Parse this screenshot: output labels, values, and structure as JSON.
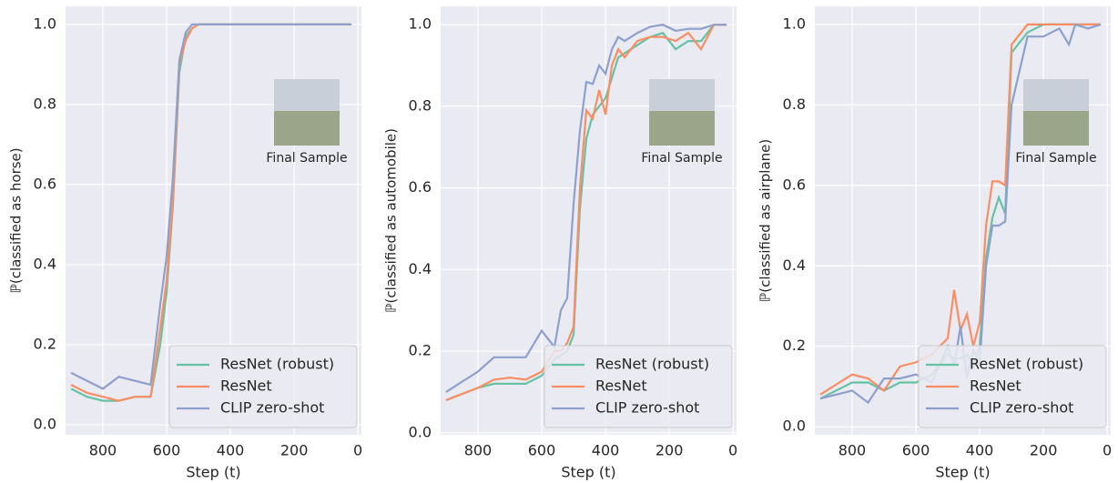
{
  "chart_data": [
    {
      "type": "line",
      "xlabel": "Step (t)",
      "ylabel": "ℙ(classified as horse)",
      "annotation": "Final Sample",
      "x": [
        900,
        850,
        800,
        750,
        700,
        650,
        620,
        600,
        580,
        560,
        540,
        520,
        500,
        480,
        450,
        400,
        300,
        200,
        100,
        20
      ],
      "series": [
        {
          "name": "ResNet (robust)",
          "color": "#66c2a5",
          "values": [
            0.09,
            0.07,
            0.06,
            0.06,
            0.07,
            0.07,
            0.2,
            0.33,
            0.55,
            0.88,
            0.97,
            0.99,
            1,
            1,
            1,
            1,
            1,
            1,
            1,
            1
          ]
        },
        {
          "name": "ResNet",
          "color": "#fc8d62",
          "values": [
            0.1,
            0.08,
            0.07,
            0.06,
            0.07,
            0.07,
            0.24,
            0.36,
            0.56,
            0.9,
            0.96,
            0.99,
            1,
            1,
            1,
            1,
            1,
            1,
            1,
            1
          ]
        },
        {
          "name": "CLIP zero-shot",
          "color": "#8da0cb",
          "values": [
            0.13,
            0.11,
            0.09,
            0.12,
            0.11,
            0.1,
            0.3,
            0.42,
            0.62,
            0.91,
            0.98,
            1,
            1,
            1,
            1,
            1,
            1,
            1,
            1,
            1
          ]
        }
      ],
      "xlim": [
        917,
        -11
      ],
      "ylim": [
        -0.025,
        1.045
      ],
      "xticks": [
        800,
        600,
        400,
        200,
        0
      ],
      "yticks": [
        {
          "value": 0,
          "label": "0.0"
        },
        {
          "value": 0.2,
          "label": "0.2"
        },
        {
          "value": 0.4,
          "label": "0.4"
        },
        {
          "value": 0.6,
          "label": "0.6"
        },
        {
          "value": 0.8,
          "label": "0.8"
        },
        {
          "value": 1,
          "label": "1.0"
        }
      ],
      "grid": true,
      "legend": "lower right"
    },
    {
      "type": "line",
      "xlabel": "Step (t)",
      "ylabel": "ℙ(classified as automobile)",
      "annotation": "Final Sample",
      "x": [
        900,
        800,
        750,
        700,
        650,
        600,
        560,
        540,
        520,
        500,
        480,
        460,
        440,
        420,
        400,
        380,
        360,
        340,
        300,
        260,
        220,
        180,
        140,
        100,
        60,
        20
      ],
      "series": [
        {
          "name": "ResNet (robust)",
          "color": "#66c2a5",
          "values": [
            0.08,
            0.11,
            0.12,
            0.12,
            0.12,
            0.14,
            0.18,
            0.19,
            0.2,
            0.24,
            0.55,
            0.72,
            0.78,
            0.8,
            0.82,
            0.87,
            0.92,
            0.93,
            0.95,
            0.97,
            0.98,
            0.94,
            0.96,
            0.96,
            1,
            1
          ]
        },
        {
          "name": "ResNet",
          "color": "#fc8d62",
          "values": [
            0.08,
            0.11,
            0.13,
            0.135,
            0.13,
            0.15,
            0.2,
            0.2,
            0.22,
            0.26,
            0.6,
            0.79,
            0.77,
            0.84,
            0.78,
            0.9,
            0.94,
            0.92,
            0.96,
            0.97,
            0.97,
            0.96,
            0.98,
            0.94,
            1,
            1
          ]
        },
        {
          "name": "CLIP zero-shot",
          "color": "#8da0cb",
          "values": [
            0.1,
            0.15,
            0.185,
            0.185,
            0.185,
            0.25,
            0.21,
            0.3,
            0.33,
            0.56,
            0.74,
            0.86,
            0.855,
            0.9,
            0.88,
            0.94,
            0.97,
            0.96,
            0.98,
            0.995,
            1,
            0.985,
            0.99,
            0.99,
            1,
            1
          ]
        }
      ],
      "xlim": [
        917,
        -11
      ],
      "ylim": [
        -0.005,
        1.045
      ],
      "xticks": [
        800,
        600,
        400,
        200,
        0
      ],
      "yticks": [
        {
          "value": 0,
          "label": "0.0"
        },
        {
          "value": 0.2,
          "label": "0.2"
        },
        {
          "value": 0.4,
          "label": "0.4"
        },
        {
          "value": 0.6,
          "label": "0.6"
        },
        {
          "value": 0.8,
          "label": "0.8"
        },
        {
          "value": 1,
          "label": "1.0"
        }
      ],
      "grid": true,
      "legend": "lower right"
    },
    {
      "type": "line",
      "xlabel": "Step (t)",
      "ylabel": "ℙ(classified as airplane)",
      "annotation": "Final Sample",
      "x": [
        900,
        800,
        750,
        700,
        650,
        600,
        550,
        500,
        480,
        460,
        440,
        420,
        400,
        380,
        360,
        340,
        320,
        300,
        250,
        200,
        150,
        120,
        100,
        60,
        20
      ],
      "series": [
        {
          "name": "ResNet (robust)",
          "color": "#66c2a5",
          "values": [
            0.07,
            0.11,
            0.11,
            0.09,
            0.11,
            0.11,
            0.13,
            0.18,
            0.17,
            0.17,
            0.18,
            0.15,
            0.2,
            0.42,
            0.52,
            0.57,
            0.53,
            0.93,
            0.98,
            1,
            1,
            1,
            1,
            1,
            1
          ]
        },
        {
          "name": "ResNet",
          "color": "#fc8d62",
          "values": [
            0.08,
            0.13,
            0.12,
            0.09,
            0.15,
            0.16,
            0.18,
            0.22,
            0.34,
            0.24,
            0.28,
            0.2,
            0.26,
            0.5,
            0.61,
            0.61,
            0.6,
            0.95,
            1,
            1,
            1,
            1,
            1,
            1,
            1
          ]
        },
        {
          "name": "CLIP zero-shot",
          "color": "#8da0cb",
          "values": [
            0.07,
            0.09,
            0.06,
            0.12,
            0.12,
            0.13,
            0.11,
            0.2,
            0.15,
            0.25,
            0.12,
            0.19,
            0.16,
            0.4,
            0.5,
            0.5,
            0.51,
            0.8,
            0.97,
            0.97,
            0.99,
            0.95,
            1,
            0.99,
            1
          ]
        }
      ],
      "xlim": [
        917,
        -11
      ],
      "ylim": [
        -0.02,
        1.045
      ],
      "xticks": [
        800,
        600,
        400,
        200,
        0
      ],
      "yticks": [
        {
          "value": 0,
          "label": "0.0"
        },
        {
          "value": 0.2,
          "label": "0.2"
        },
        {
          "value": 0.4,
          "label": "0.4"
        },
        {
          "value": 0.6,
          "label": "0.6"
        },
        {
          "value": 0.8,
          "label": "0.8"
        },
        {
          "value": 1,
          "label": "1.0"
        }
      ],
      "grid": true,
      "legend": "lower right"
    }
  ]
}
